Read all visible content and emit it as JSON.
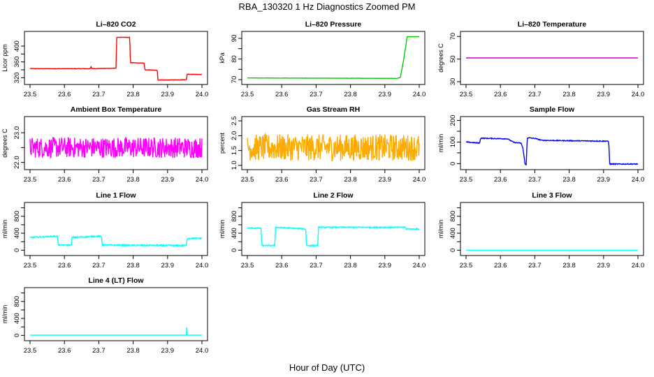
{
  "figure_title": "RBA_130320  1 Hz Diagnostics Zoomed PM",
  "x_axis_label": "Hour of Day (UTC)",
  "chart_data": [
    {
      "id": "co2",
      "type": "line",
      "title": "Li–820 CO2",
      "ylabel": "Licor ppm",
      "color": "#ff0000",
      "xlim": [
        23.5,
        24.0
      ],
      "ylim": [
        310,
        430
      ],
      "yticks": [
        320,
        340,
        360,
        380,
        400
      ],
      "ytick_labels": [
        "320",
        "",
        "360",
        "",
        "400"
      ],
      "xticks": [
        23.5,
        23.6,
        23.7,
        23.8,
        23.9,
        24.0
      ],
      "segments": [
        [
          23.5,
          343
        ],
        [
          23.675,
          343
        ],
        [
          23.677,
          348
        ],
        [
          23.68,
          343
        ],
        [
          23.75,
          344
        ],
        [
          23.752,
          422
        ],
        [
          23.79,
          422
        ],
        [
          23.792,
          358
        ],
        [
          23.832,
          357
        ],
        [
          23.834,
          340
        ],
        [
          23.87,
          339
        ],
        [
          23.872,
          314
        ],
        [
          23.955,
          315
        ],
        [
          23.957,
          329
        ],
        [
          24.0,
          328
        ]
      ],
      "noise": 1
    },
    {
      "id": "pressure",
      "type": "line",
      "title": "Li–820 Pressure",
      "ylabel": "kPa",
      "color": "#00cc00",
      "xlim": [
        23.5,
        24.0
      ],
      "ylim": [
        69,
        92
      ],
      "yticks": [
        70,
        75,
        80,
        85,
        90
      ],
      "ytick_labels": [
        "70",
        "",
        "80",
        "",
        "90"
      ],
      "xticks": [
        23.5,
        23.6,
        23.7,
        23.8,
        23.9,
        24.0
      ],
      "segments": [
        [
          23.5,
          70.8
        ],
        [
          23.935,
          70.6
        ],
        [
          23.945,
          71
        ],
        [
          23.955,
          80
        ],
        [
          23.965,
          90.8
        ],
        [
          24.0,
          90.8
        ]
      ],
      "noise": 0.1
    },
    {
      "id": "li820temp",
      "type": "line",
      "title": "Li–820 Temperature",
      "ylabel": "degrees C",
      "color": "#cc00cc",
      "xlim": [
        23.5,
        24.0
      ],
      "ylim": [
        30,
        72
      ],
      "yticks": [
        30,
        50,
        70
      ],
      "ytick_labels": [
        "30",
        "50",
        "70"
      ],
      "xticks": [
        23.5,
        23.6,
        23.7,
        23.8,
        23.9,
        24.0
      ],
      "segments": [
        [
          23.5,
          51
        ],
        [
          24.0,
          51
        ]
      ],
      "noise": 0
    },
    {
      "id": "ambient",
      "type": "line",
      "title": "Ambient Box Temperature",
      "ylabel": "degrees C",
      "color": "#ff00ff",
      "xlim": [
        23.5,
        24.0
      ],
      "ylim": [
        21.85,
        23.45
      ],
      "yticks": [
        22.0,
        22.5,
        23.0
      ],
      "ytick_labels": [
        "22.0",
        "",
        "23.0"
      ],
      "xticks": [
        23.5,
        23.6,
        23.7,
        23.8,
        23.9,
        24.0
      ],
      "segments": [
        [
          23.5,
          22.5
        ],
        [
          24.0,
          22.5
        ]
      ],
      "noise": 0.7
    },
    {
      "id": "rh",
      "type": "line",
      "title": "Gas Stream RH",
      "ylabel": "percent",
      "color": "#ffaa00",
      "xlim": [
        23.5,
        24.0
      ],
      "ylim": [
        0.95,
        2.55
      ],
      "yticks": [
        1.0,
        1.5,
        2.0,
        2.5
      ],
      "ytick_labels": [
        "1.0",
        "1.5",
        "2.0",
        "2.5"
      ],
      "xticks": [
        23.5,
        23.6,
        23.7,
        23.8,
        23.9,
        24.0
      ],
      "segments": [
        [
          23.5,
          1.6
        ],
        [
          24.0,
          1.6
        ]
      ],
      "noise": 0.9
    },
    {
      "id": "sample",
      "type": "line",
      "title": "Sample Flow",
      "ylabel": "ml/min",
      "color": "#0000ff",
      "xlim": [
        23.5,
        24.0
      ],
      "ylim": [
        -15,
        205
      ],
      "yticks": [
        0,
        50,
        100,
        150,
        200
      ],
      "ytick_labels": [
        "0",
        "",
        "100",
        "",
        "200"
      ],
      "xticks": [
        23.5,
        23.6,
        23.7,
        23.8,
        23.9,
        24.0
      ],
      "segments": [
        [
          23.5,
          100
        ],
        [
          23.54,
          95
        ],
        [
          23.542,
          118
        ],
        [
          23.62,
          115
        ],
        [
          23.64,
          98
        ],
        [
          23.66,
          95
        ],
        [
          23.665,
          75
        ],
        [
          23.672,
          -5
        ],
        [
          23.675,
          -5
        ],
        [
          23.678,
          120
        ],
        [
          23.7,
          117
        ],
        [
          23.72,
          108
        ],
        [
          23.91,
          104
        ],
        [
          23.915,
          102
        ],
        [
          23.918,
          -2
        ],
        [
          24.0,
          -2
        ]
      ],
      "noise": 4
    },
    {
      "id": "line1",
      "type": "line",
      "title": "Line 1 Flow",
      "ylabel": "ml/min",
      "color": "#00ffff",
      "xlim": [
        23.5,
        24.0
      ],
      "ylim": [
        -60,
        1060
      ],
      "yticks": [
        0,
        200,
        400,
        600,
        800,
        1000
      ],
      "ytick_labels": [
        "0",
        "",
        "400",
        "",
        "800",
        ""
      ],
      "xticks": [
        23.5,
        23.6,
        23.7,
        23.8,
        23.9,
        24.0
      ],
      "segments": [
        [
          23.5,
          300
        ],
        [
          23.58,
          330
        ],
        [
          23.582,
          120
        ],
        [
          23.62,
          120
        ],
        [
          23.622,
          300
        ],
        [
          23.68,
          320
        ],
        [
          23.7,
          330
        ],
        [
          23.708,
          320
        ],
        [
          23.71,
          120
        ],
        [
          23.955,
          110
        ],
        [
          23.957,
          280
        ],
        [
          24.0,
          280
        ]
      ],
      "noise": 30
    },
    {
      "id": "line2",
      "type": "line",
      "title": "Line 2 Flow",
      "ylabel": "ml/min",
      "color": "#00ffff",
      "xlim": [
        23.5,
        24.0
      ],
      "ylim": [
        -60,
        1060
      ],
      "yticks": [
        0,
        200,
        400,
        600,
        800,
        1000
      ],
      "ytick_labels": [
        "0",
        "",
        "400",
        "",
        "800",
        ""
      ],
      "xticks": [
        23.5,
        23.6,
        23.7,
        23.8,
        23.9,
        24.0
      ],
      "segments": [
        [
          23.5,
          520
        ],
        [
          23.54,
          520
        ],
        [
          23.542,
          110
        ],
        [
          23.58,
          110
        ],
        [
          23.582,
          540
        ],
        [
          23.67,
          500
        ],
        [
          23.672,
          110
        ],
        [
          23.705,
          110
        ],
        [
          23.707,
          540
        ],
        [
          23.96,
          540
        ],
        [
          23.962,
          500
        ],
        [
          24.0,
          500
        ]
      ],
      "noise": 25
    },
    {
      "id": "line3",
      "type": "line",
      "title": "Line 3 Flow",
      "ylabel": "ml/min",
      "color": "#00ffff",
      "xlim": [
        23.5,
        24.0
      ],
      "ylim": [
        -60,
        1060
      ],
      "yticks": [
        0,
        200,
        400,
        600,
        800,
        1000
      ],
      "ytick_labels": [
        "0",
        "",
        "400",
        "",
        "800",
        ""
      ],
      "xticks": [
        23.5,
        23.6,
        23.7,
        23.8,
        23.9,
        24.0
      ],
      "segments": [
        [
          23.5,
          0
        ],
        [
          24.0,
          0
        ]
      ],
      "noise": 0
    },
    {
      "id": "line4",
      "type": "line",
      "title": "Line 4 (LT) Flow",
      "ylabel": "ml/min",
      "color": "#00ffff",
      "xlim": [
        23.5,
        24.0
      ],
      "ylim": [
        -60,
        1060
      ],
      "yticks": [
        0,
        200,
        400,
        600,
        800,
        1000
      ],
      "ytick_labels": [
        "0",
        "",
        "400",
        "",
        "800",
        ""
      ],
      "xticks": [
        23.5,
        23.6,
        23.7,
        23.8,
        23.9,
        24.0
      ],
      "segments": [
        [
          23.5,
          5
        ],
        [
          23.955,
          5
        ],
        [
          23.956,
          200
        ],
        [
          23.957,
          5
        ],
        [
          24.0,
          5
        ]
      ],
      "noise": 0
    }
  ]
}
